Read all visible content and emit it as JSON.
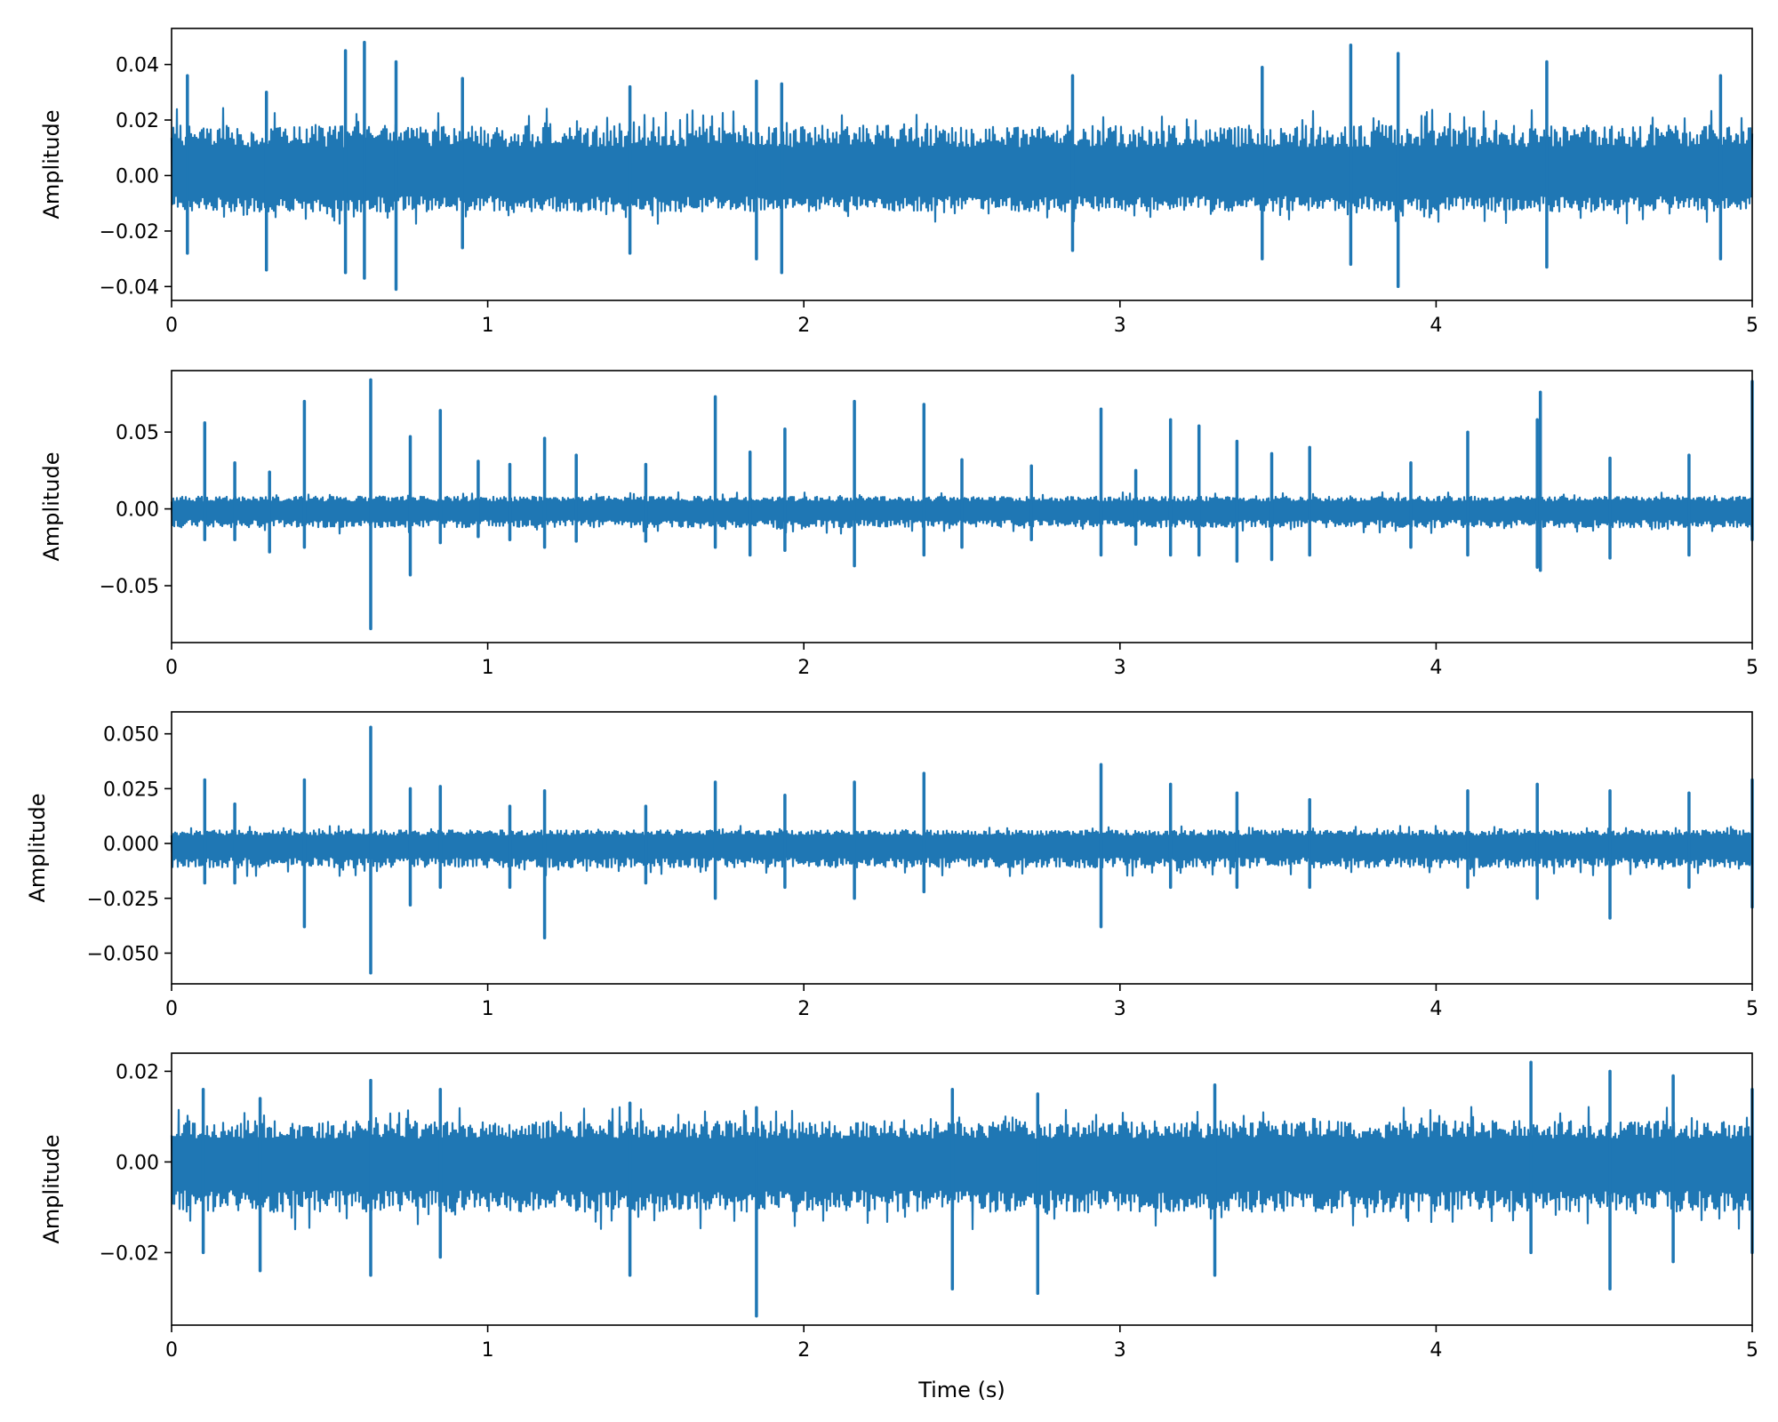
{
  "colors": {
    "series": "#1f77b4",
    "axis": "#000000",
    "background": "#ffffff"
  },
  "figure": {
    "xlabel": "Time (s)"
  },
  "chart_data": [
    {
      "type": "line",
      "title": "",
      "xlabel": "",
      "ylabel": "Amplitude",
      "xlim": [
        0,
        5
      ],
      "ylim": [
        -0.045,
        0.053
      ],
      "grid": false,
      "xticks": [
        0,
        1,
        2,
        3,
        4,
        5
      ],
      "xtick_labels": [
        "0",
        "1",
        "2",
        "3",
        "4",
        "5"
      ],
      "yticks": [
        -0.04,
        -0.02,
        0.0,
        0.02,
        0.04
      ],
      "ytick_labels": [
        "−0.04",
        "−0.02",
        "0.00",
        "0.02",
        "0.04"
      ],
      "envelope": {
        "upper": 0.018,
        "lower": -0.013
      },
      "spikes": [
        [
          0.05,
          0.036,
          -0.028
        ],
        [
          0.3,
          0.03,
          -0.034
        ],
        [
          0.55,
          0.045,
          -0.035
        ],
        [
          0.61,
          0.048,
          -0.037
        ],
        [
          0.71,
          0.041,
          -0.041
        ],
        [
          0.92,
          0.035,
          -0.026
        ],
        [
          1.45,
          0.032,
          -0.028
        ],
        [
          1.85,
          0.034,
          -0.03
        ],
        [
          1.93,
          0.033,
          -0.035
        ],
        [
          2.85,
          0.036,
          -0.027
        ],
        [
          3.45,
          0.039,
          -0.03
        ],
        [
          3.73,
          0.047,
          -0.032
        ],
        [
          3.88,
          0.044,
          -0.04
        ],
        [
          4.35,
          0.041,
          -0.033
        ],
        [
          4.9,
          0.036,
          -0.03
        ]
      ]
    },
    {
      "type": "line",
      "title": "",
      "xlabel": "",
      "ylabel": "Amplitude",
      "xlim": [
        0,
        5
      ],
      "ylim": [
        -0.087,
        0.09
      ],
      "grid": false,
      "xticks": [
        0,
        1,
        2,
        3,
        4,
        5
      ],
      "xtick_labels": [
        "0",
        "1",
        "2",
        "3",
        "4",
        "5"
      ],
      "yticks": [
        -0.05,
        0.0,
        0.05
      ],
      "ytick_labels": [
        "−0.05",
        "0.00",
        "0.05"
      ],
      "envelope": {
        "upper": 0.008,
        "lower": -0.012
      },
      "spikes": [
        [
          0.105,
          0.056,
          -0.02
        ],
        [
          0.2,
          0.03,
          -0.02
        ],
        [
          0.31,
          0.024,
          -0.028
        ],
        [
          0.42,
          0.07,
          -0.025
        ],
        [
          0.63,
          0.084,
          -0.078
        ],
        [
          0.755,
          0.047,
          -0.043
        ],
        [
          0.85,
          0.064,
          -0.022
        ],
        [
          0.97,
          0.031,
          -0.018
        ],
        [
          1.07,
          0.029,
          -0.02
        ],
        [
          1.18,
          0.046,
          -0.025
        ],
        [
          1.28,
          0.035,
          -0.021
        ],
        [
          1.5,
          0.029,
          -0.021
        ],
        [
          1.72,
          0.073,
          -0.025
        ],
        [
          1.83,
          0.037,
          -0.03
        ],
        [
          1.94,
          0.052,
          -0.027
        ],
        [
          2.16,
          0.07,
          -0.037
        ],
        [
          2.38,
          0.068,
          -0.03
        ],
        [
          2.5,
          0.032,
          -0.025
        ],
        [
          2.72,
          0.028,
          -0.02
        ],
        [
          2.94,
          0.065,
          -0.03
        ],
        [
          3.05,
          0.025,
          -0.023
        ],
        [
          3.16,
          0.058,
          -0.03
        ],
        [
          3.25,
          0.054,
          -0.03
        ],
        [
          3.37,
          0.044,
          -0.034
        ],
        [
          3.48,
          0.036,
          -0.033
        ],
        [
          3.6,
          0.04,
          -0.03
        ],
        [
          3.92,
          0.03,
          -0.025
        ],
        [
          4.1,
          0.05,
          -0.03
        ],
        [
          4.32,
          0.058,
          -0.038
        ],
        [
          4.33,
          0.076,
          -0.04
        ],
        [
          4.55,
          0.033,
          -0.032
        ],
        [
          4.8,
          0.035,
          -0.03
        ],
        [
          5.0,
          0.083,
          -0.02
        ]
      ]
    },
    {
      "type": "line",
      "title": "",
      "xlabel": "",
      "ylabel": "Amplitude",
      "xlim": [
        0,
        5
      ],
      "ylim": [
        -0.064,
        0.06
      ],
      "grid": false,
      "xticks": [
        0,
        1,
        2,
        3,
        4,
        5
      ],
      "xtick_labels": [
        "0",
        "1",
        "2",
        "3",
        "4",
        "5"
      ],
      "yticks": [
        -0.05,
        -0.025,
        0.0,
        0.025,
        0.05
      ],
      "ytick_labels": [
        "−0.050",
        "−0.025",
        "0.000",
        "0.025",
        "0.050"
      ],
      "envelope": {
        "upper": 0.006,
        "lower": -0.011
      },
      "spikes": [
        [
          0.105,
          0.029,
          -0.018
        ],
        [
          0.2,
          0.018,
          -0.018
        ],
        [
          0.42,
          0.029,
          -0.038
        ],
        [
          0.63,
          0.053,
          -0.059
        ],
        [
          0.755,
          0.025,
          -0.028
        ],
        [
          0.85,
          0.026,
          -0.02
        ],
        [
          1.07,
          0.017,
          -0.02
        ],
        [
          1.18,
          0.024,
          -0.043
        ],
        [
          1.5,
          0.017,
          -0.018
        ],
        [
          1.72,
          0.028,
          -0.025
        ],
        [
          1.94,
          0.022,
          -0.02
        ],
        [
          2.16,
          0.028,
          -0.025
        ],
        [
          2.38,
          0.032,
          -0.022
        ],
        [
          2.94,
          0.036,
          -0.038
        ],
        [
          3.16,
          0.027,
          -0.02
        ],
        [
          3.37,
          0.023,
          -0.02
        ],
        [
          3.6,
          0.02,
          -0.02
        ],
        [
          4.1,
          0.024,
          -0.02
        ],
        [
          4.32,
          0.027,
          -0.025
        ],
        [
          4.55,
          0.024,
          -0.034
        ],
        [
          4.8,
          0.023,
          -0.02
        ],
        [
          5.0,
          0.029,
          -0.029
        ]
      ]
    },
    {
      "type": "line",
      "title": "",
      "xlabel": "Time (s)",
      "ylabel": "Amplitude",
      "xlim": [
        0,
        5
      ],
      "ylim": [
        -0.036,
        0.024
      ],
      "grid": false,
      "xticks": [
        0,
        1,
        2,
        3,
        4,
        5
      ],
      "xtick_labels": [
        "0",
        "1",
        "2",
        "3",
        "4",
        "5"
      ],
      "yticks": [
        -0.02,
        0.0,
        0.02
      ],
      "ytick_labels": [
        "−0.02",
        "0.00",
        "0.02"
      ],
      "envelope": {
        "upper": 0.009,
        "lower": -0.011
      },
      "spikes": [
        [
          0.1,
          0.016,
          -0.02
        ],
        [
          0.28,
          0.014,
          -0.024
        ],
        [
          0.63,
          0.018,
          -0.025
        ],
        [
          0.85,
          0.016,
          -0.021
        ],
        [
          1.45,
          0.013,
          -0.025
        ],
        [
          1.85,
          0.012,
          -0.034
        ],
        [
          2.47,
          0.016,
          -0.028
        ],
        [
          2.74,
          0.015,
          -0.029
        ],
        [
          3.3,
          0.017,
          -0.025
        ],
        [
          4.3,
          0.022,
          -0.02
        ],
        [
          4.55,
          0.02,
          -0.028
        ],
        [
          4.75,
          0.019,
          -0.022
        ],
        [
          5.0,
          0.016,
          -0.02
        ]
      ]
    }
  ]
}
